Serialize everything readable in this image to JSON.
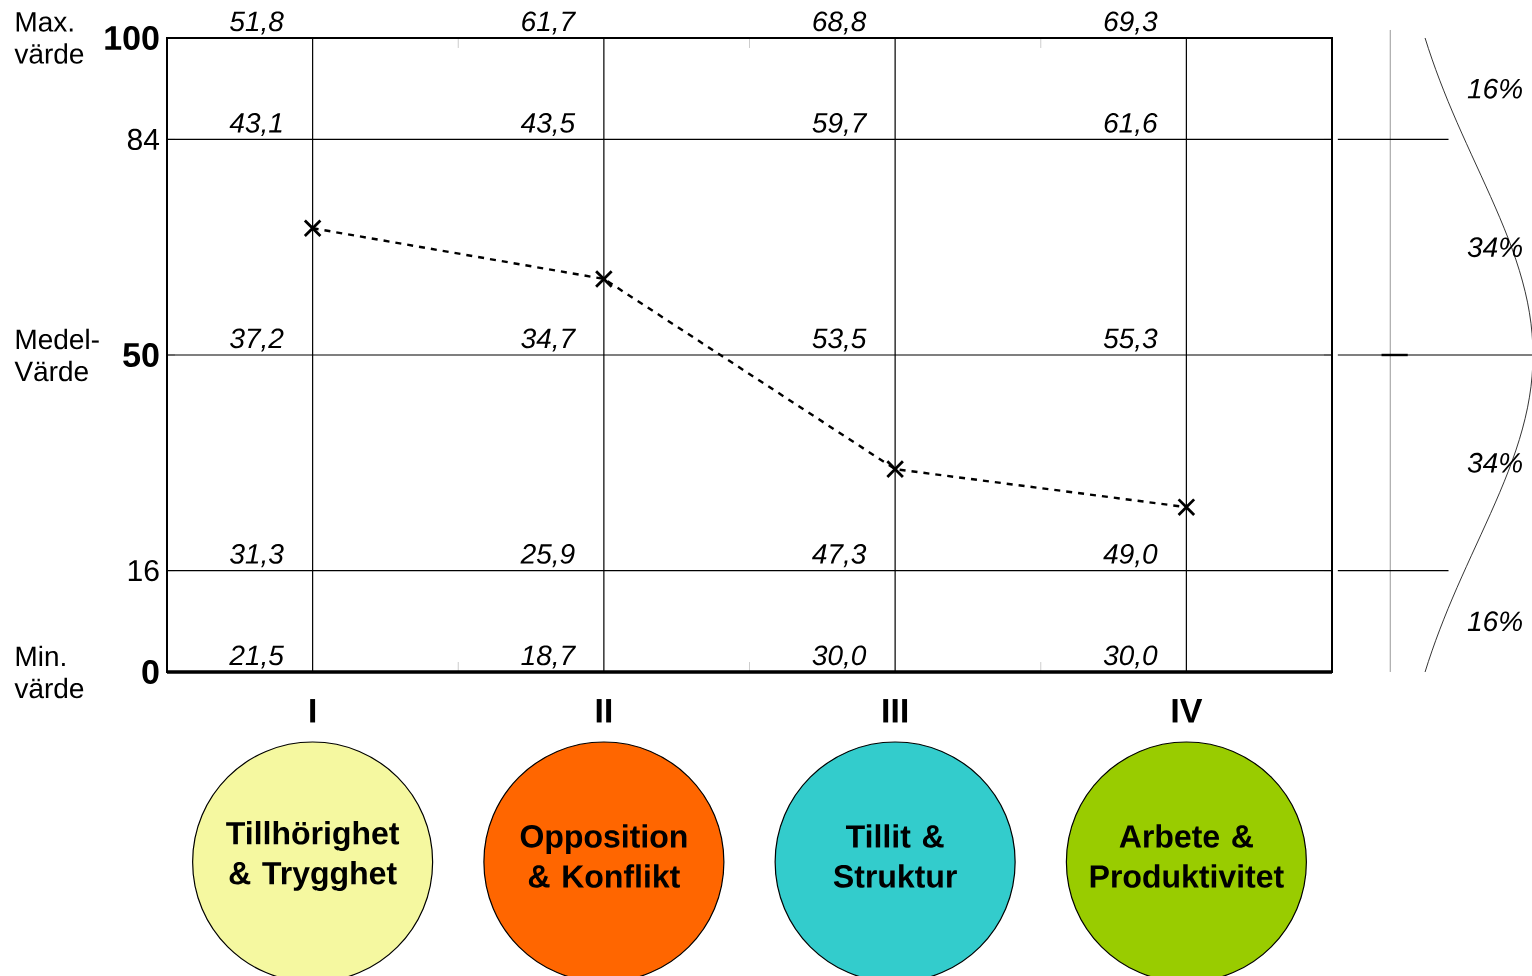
{
  "chart_data": {
    "type": "line",
    "categories": [
      "I",
      "II",
      "III",
      "IV"
    ],
    "series": [
      {
        "color": "#000000",
        "values": [
          70,
          62,
          32,
          26
        ]
      }
    ],
    "ylim": [
      0,
      100
    ],
    "yticks": [
      0,
      16,
      50,
      84,
      100
    ],
    "grid": true,
    "marker": "cross",
    "line_style": "dashed",
    "annotations": [
      "51,8",
      "61,7",
      "68,8",
      "69,3",
      "43,1",
      "43,5",
      "59,7",
      "61,6",
      "37,2",
      "34,7",
      "53,5",
      "55,3",
      "31,3",
      "25,9",
      "47,3",
      "49,0",
      "21,5",
      "18,7",
      "30,0",
      "30,0",
      "Max. värde",
      "Medel-Värde",
      "Min. värde",
      "Tillhörighet & Trygghet",
      "Opposition & Konflikt",
      "Tillit & Struktur",
      "Arbete & Produktivitet",
      "16%",
      "34%",
      "34%",
      "16%"
    ]
  }
}
